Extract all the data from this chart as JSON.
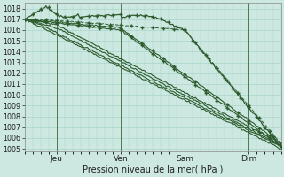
{
  "xlabel": "Pression niveau de la mer( hPa )",
  "ylim": [
    1004.8,
    1018.5
  ],
  "xlim": [
    0,
    96
  ],
  "yticks": [
    1005,
    1006,
    1007,
    1008,
    1009,
    1010,
    1011,
    1012,
    1013,
    1014,
    1015,
    1016,
    1017,
    1018
  ],
  "xtick_positions": [
    12,
    36,
    60,
    84
  ],
  "xtick_labels": [
    "Jeu",
    "Ven",
    "Sam",
    "Dim"
  ],
  "bg_color": "#cce8e0",
  "grid_color": "#aad4cc",
  "line_color": "#2d5a2d",
  "n_points": 193
}
